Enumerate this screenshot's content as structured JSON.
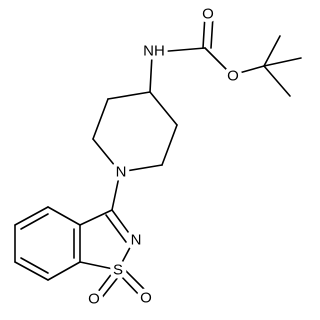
{
  "labels": [
    "O",
    "NH",
    "O",
    "N",
    "N",
    "S",
    "O",
    "O"
  ]
}
